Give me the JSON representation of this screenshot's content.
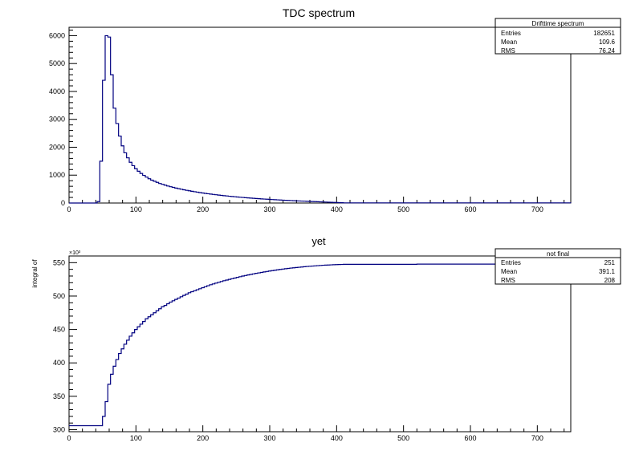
{
  "colors": {
    "line": "#000080",
    "axis": "#000000",
    "background": "#ffffff"
  },
  "chart_data": [
    {
      "type": "line",
      "title": "TDC spectrum",
      "xlabel": "",
      "ylabel": "",
      "xlim": [
        0,
        750
      ],
      "ylim": [
        0,
        6300
      ],
      "xticks": [
        "0",
        "100",
        "200",
        "300",
        "400",
        "500",
        "600",
        "700"
      ],
      "yticks": [
        "0",
        "1000",
        "2000",
        "3000",
        "4000",
        "5000",
        "6000"
      ],
      "stats": {
        "title": "Drifttime spectrum",
        "rows": [
          {
            "label": "Entries",
            "value": "182651"
          },
          {
            "label": "Mean",
            "value": "109.6"
          },
          {
            "label": "RMS",
            "value": "76.24"
          }
        ]
      },
      "series": [
        {
          "x": [
            0,
            42,
            46,
            50,
            54,
            58,
            62,
            66,
            70,
            74,
            78,
            82,
            86,
            90,
            94,
            98,
            102,
            106,
            110,
            114,
            118,
            122,
            126,
            130,
            134,
            138,
            142,
            146,
            150,
            154,
            158,
            162,
            166,
            170,
            174,
            178,
            182,
            186,
            190,
            194,
            198,
            202,
            206,
            210,
            214,
            218,
            222,
            226,
            230,
            234,
            238,
            242,
            246,
            250,
            254,
            258,
            262,
            266,
            270,
            274,
            278,
            282,
            286,
            290,
            294,
            298,
            302,
            306,
            310,
            314,
            318,
            322,
            326,
            330,
            334,
            338,
            342,
            346,
            350,
            354,
            358,
            362,
            366,
            370,
            374,
            378,
            382,
            386,
            390,
            394,
            398,
            402,
            406,
            410,
            750
          ],
          "values": [
            0,
            50,
            1500,
            4400,
            6000,
            5950,
            4600,
            3400,
            2850,
            2400,
            2050,
            1800,
            1620,
            1460,
            1340,
            1230,
            1140,
            1060,
            990,
            930,
            870,
            820,
            780,
            740,
            700,
            670,
            640,
            610,
            585,
            560,
            535,
            515,
            495,
            475,
            455,
            438,
            420,
            405,
            390,
            375,
            360,
            346,
            333,
            320,
            308,
            296,
            285,
            274,
            263,
            253,
            243,
            234,
            225,
            216,
            207,
            199,
            191,
            183,
            176,
            169,
            162,
            155,
            148,
            142,
            136,
            130,
            124,
            118,
            113,
            108,
            103,
            98,
            93,
            88,
            83,
            78,
            74,
            70,
            66,
            62,
            58,
            54,
            50,
            46,
            42,
            38,
            34,
            30,
            26,
            22,
            18,
            14,
            10,
            5,
            0
          ]
        }
      ]
    },
    {
      "type": "line",
      "title": "yet",
      "xlabel": "",
      "ylabel": "integral of",
      "y_exponent": "×10³",
      "xlim": [
        0,
        750
      ],
      "ylim": [
        297,
        560
      ],
      "xticks": [
        "0",
        "100",
        "200",
        "300",
        "400",
        "500",
        "600",
        "700"
      ],
      "yticks": [
        "300",
        "350",
        "400",
        "450",
        "500",
        "550"
      ],
      "stats": {
        "title": "not final",
        "rows": [
          {
            "label": "Entries",
            "value": "251"
          },
          {
            "label": "Mean",
            "value": "391.1"
          },
          {
            "label": "RMS",
            "value": "208"
          }
        ]
      },
      "series": [
        {
          "x": [
            0,
            45,
            50,
            54,
            58,
            62,
            66,
            70,
            74,
            78,
            82,
            86,
            90,
            94,
            98,
            102,
            106,
            110,
            114,
            118,
            122,
            126,
            130,
            134,
            138,
            142,
            146,
            150,
            154,
            158,
            162,
            166,
            170,
            174,
            178,
            182,
            186,
            190,
            194,
            198,
            202,
            206,
            210,
            214,
            218,
            222,
            226,
            230,
            234,
            238,
            242,
            246,
            250,
            254,
            258,
            262,
            266,
            270,
            274,
            278,
            282,
            286,
            290,
            294,
            298,
            302,
            306,
            310,
            314,
            318,
            322,
            326,
            330,
            334,
            338,
            342,
            346,
            350,
            354,
            358,
            362,
            366,
            370,
            374,
            378,
            382,
            386,
            390,
            394,
            398,
            402,
            406,
            410,
            520,
            750
          ],
          "values": [
            306,
            306,
            320,
            342,
            368,
            383,
            395,
            405,
            414,
            421,
            428,
            434,
            440,
            445,
            450,
            454,
            458,
            462,
            466,
            469,
            472,
            475,
            478,
            481,
            484,
            486,
            488.5,
            491,
            493,
            495,
            497,
            499,
            501,
            503,
            505,
            506.5,
            508,
            509.5,
            511,
            512.5,
            514,
            515.5,
            517,
            518.2,
            519.4,
            520.6,
            521.8,
            523,
            524,
            525,
            526,
            527,
            528,
            529,
            530,
            530.8,
            531.6,
            532.4,
            533.2,
            534,
            534.7,
            535.4,
            536.1,
            536.8,
            537.5,
            538.1,
            538.7,
            539.3,
            539.9,
            540.4,
            540.9,
            541.4,
            541.9,
            542.3,
            542.7,
            543.1,
            543.5,
            543.9,
            544.3,
            544.6,
            544.9,
            545.2,
            545.5,
            545.8,
            546.1,
            546.3,
            546.5,
            546.7,
            546.9,
            547.1,
            547.2,
            547.3,
            547.5,
            547.8,
            548.2
          ]
        }
      ]
    }
  ]
}
